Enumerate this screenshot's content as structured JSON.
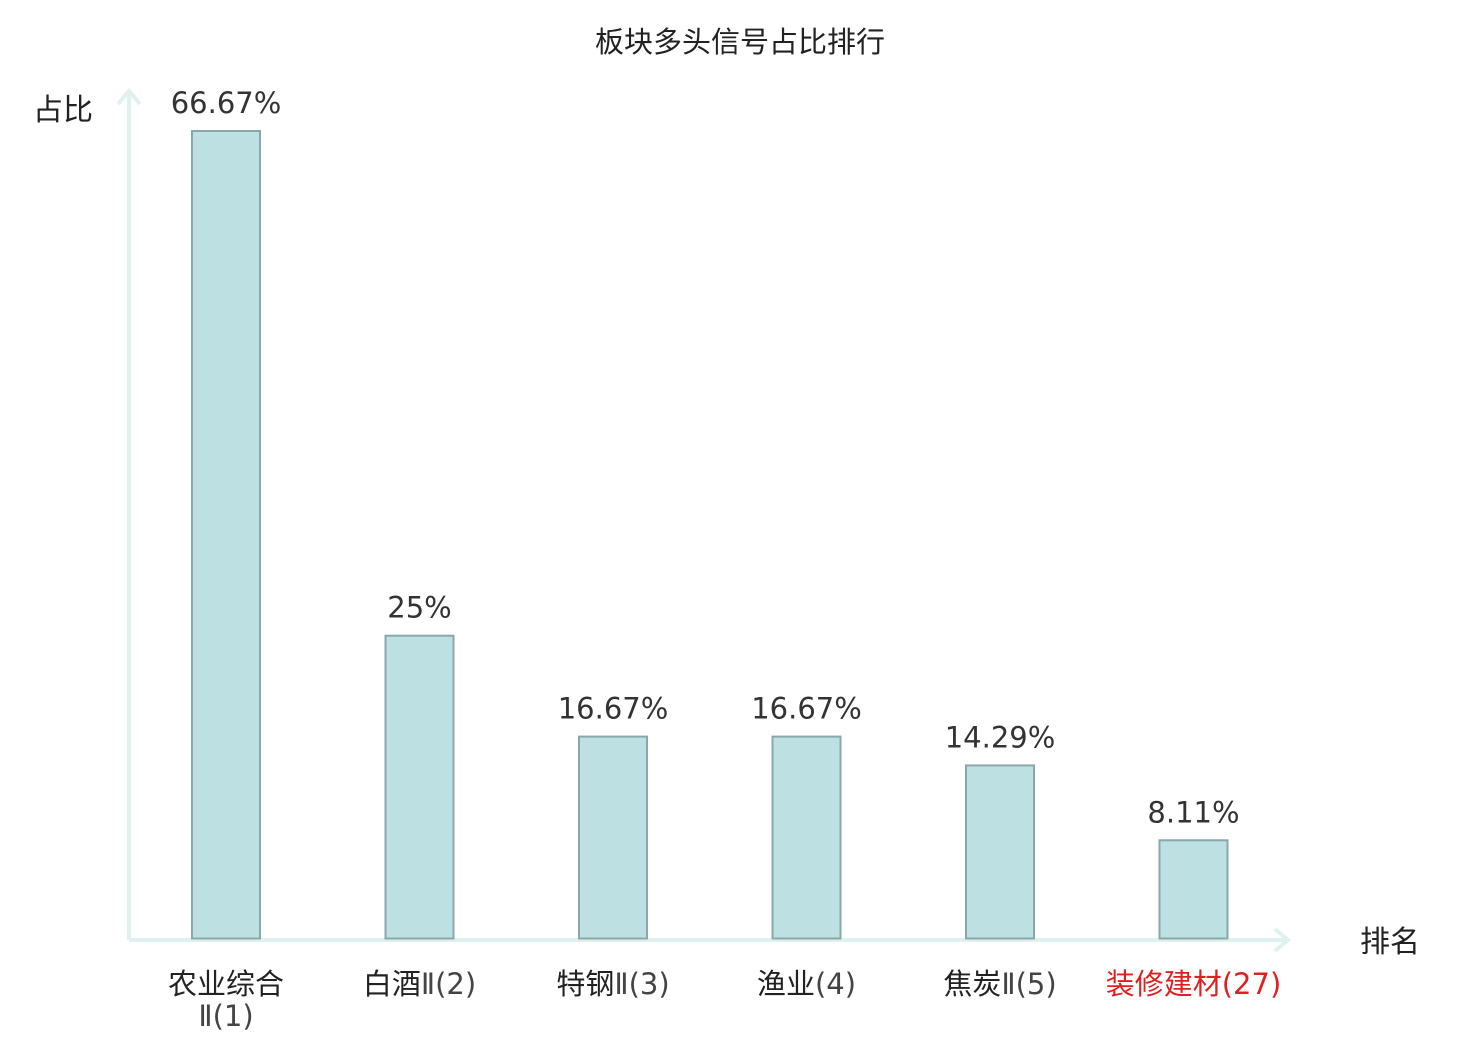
{
  "chart_data": {
    "type": "bar",
    "title": "板块多头信号占比排行",
    "ylabel": "占比",
    "xlabel": "排名",
    "ylim": [
      0,
      66.67
    ],
    "grid": false,
    "categories": [
      {
        "name": "农业综合",
        "rank": "Ⅱ(1)",
        "highlight": false
      },
      {
        "name": "白酒",
        "rank": "Ⅱ(2)",
        "highlight": false
      },
      {
        "name": "特钢",
        "rank": "Ⅱ(3)",
        "highlight": false
      },
      {
        "name": "渔业",
        "rank": "(4)",
        "highlight": false
      },
      {
        "name": "焦炭",
        "rank": "Ⅱ(5)",
        "highlight": false
      },
      {
        "name": "装修建材",
        "rank": "(27)",
        "highlight": true
      }
    ],
    "values": [
      66.67,
      25,
      16.67,
      16.67,
      14.29,
      8.11
    ],
    "value_labels": [
      "66.67%",
      "25%",
      "16.67%",
      "16.67%",
      "14.29%",
      "8.11%"
    ],
    "colors": {
      "bar_fill": "#bde0e2",
      "bar_stroke": "#8aa8aa",
      "axis": "#dff1ef",
      "text": "#333333",
      "highlight": "#e02020"
    }
  }
}
